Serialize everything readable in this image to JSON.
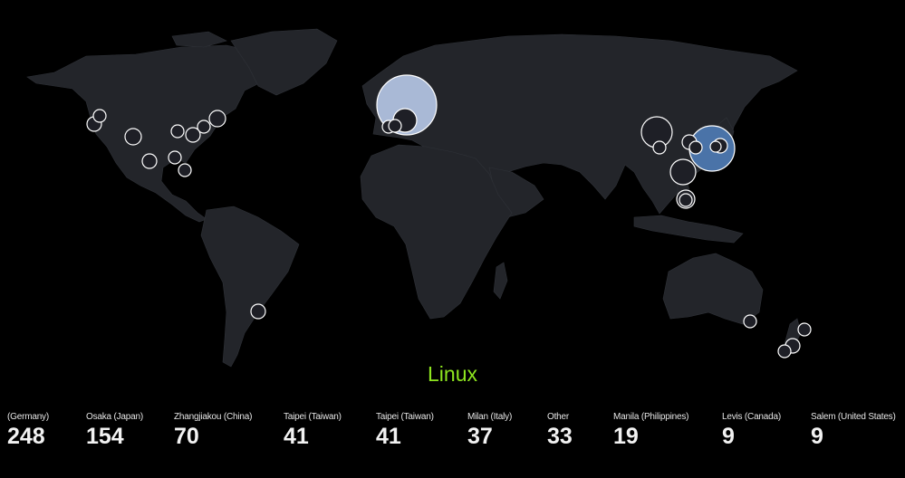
{
  "title": "Linux",
  "colors": {
    "background": "#000000",
    "land": "#23252a",
    "title": "#8ee51f",
    "bubble_default": "#1e1f26",
    "bubble_germany": "#a9b9d6",
    "bubble_japan": "#4a73a8",
    "marker_stroke": "#ffffff"
  },
  "stats": [
    {
      "location": "(Germany)",
      "count": "248"
    },
    {
      "location": "Osaka (Japan)",
      "count": "154"
    },
    {
      "location": "Zhangjiakou (China)",
      "count": "70"
    },
    {
      "location": "Taipei (Taiwan)",
      "count": "41"
    },
    {
      "location": "Taipei (Taiwan)",
      "count": "41"
    },
    {
      "location": "Milan (Italy)",
      "count": "37"
    },
    {
      "location": "Other",
      "count": "33"
    },
    {
      "location": "Manila (Philippines)",
      "count": "19"
    },
    {
      "location": "Levis (Canada)",
      "count": "9"
    },
    {
      "location": "Salem (United States)",
      "count": "9"
    }
  ]
}
